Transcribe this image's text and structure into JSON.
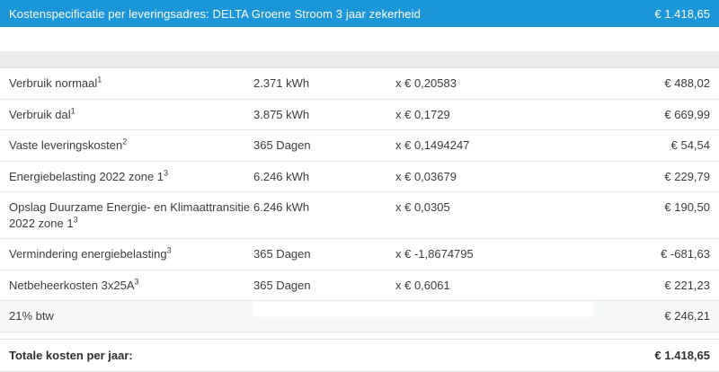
{
  "header": {
    "title": "Kostenspecificatie per leveringsadres: DELTA Groene Stroom 3 jaar zekerheid",
    "amount": "€ 1.418,65",
    "bg_color": "#1b97d9"
  },
  "table": {
    "rows": [
      {
        "label": "Verbruik normaal",
        "sup": "1",
        "qty": "2.371 kWh",
        "rate": "x € 0,20583",
        "amount": "€ 488,02"
      },
      {
        "label": "Verbruik dal",
        "sup": "1",
        "qty": "3.875 kWh",
        "rate": "x € 0,1729",
        "amount": "€ 669,99"
      },
      {
        "label": "Vaste leveringskosten",
        "sup": "2",
        "qty": "365 Dagen",
        "rate": "x € 0,1494247",
        "amount": "€ 54,54"
      },
      {
        "label": "Energiebelasting 2022 zone 1",
        "sup": "3",
        "qty": "6.246 kWh",
        "rate": "x € 0,03679",
        "amount": "€ 229,79"
      },
      {
        "label": "Opslag Duurzame Energie- en Klimaattransitie 2022 zone 1",
        "sup": "3",
        "qty": "6.246 kWh",
        "rate": "x € 0,0305",
        "amount": "€ 190,50"
      },
      {
        "label": "Vermindering energiebelasting",
        "sup": "3",
        "qty": "365 Dagen",
        "rate": "x € -1,8674795",
        "amount": "€ -681,63"
      },
      {
        "label": "Netbeheerkosten 3x25A",
        "sup": "3",
        "qty": "365 Dagen",
        "rate": "x € 0,6061",
        "amount": "€ 221,23"
      },
      {
        "label": "21% btw",
        "sup": "",
        "qty": "",
        "rate": "",
        "amount": "€ 246,21"
      }
    ],
    "footer": {
      "label": "Totale kosten per jaar:",
      "amount": "€ 1.418,65"
    }
  }
}
